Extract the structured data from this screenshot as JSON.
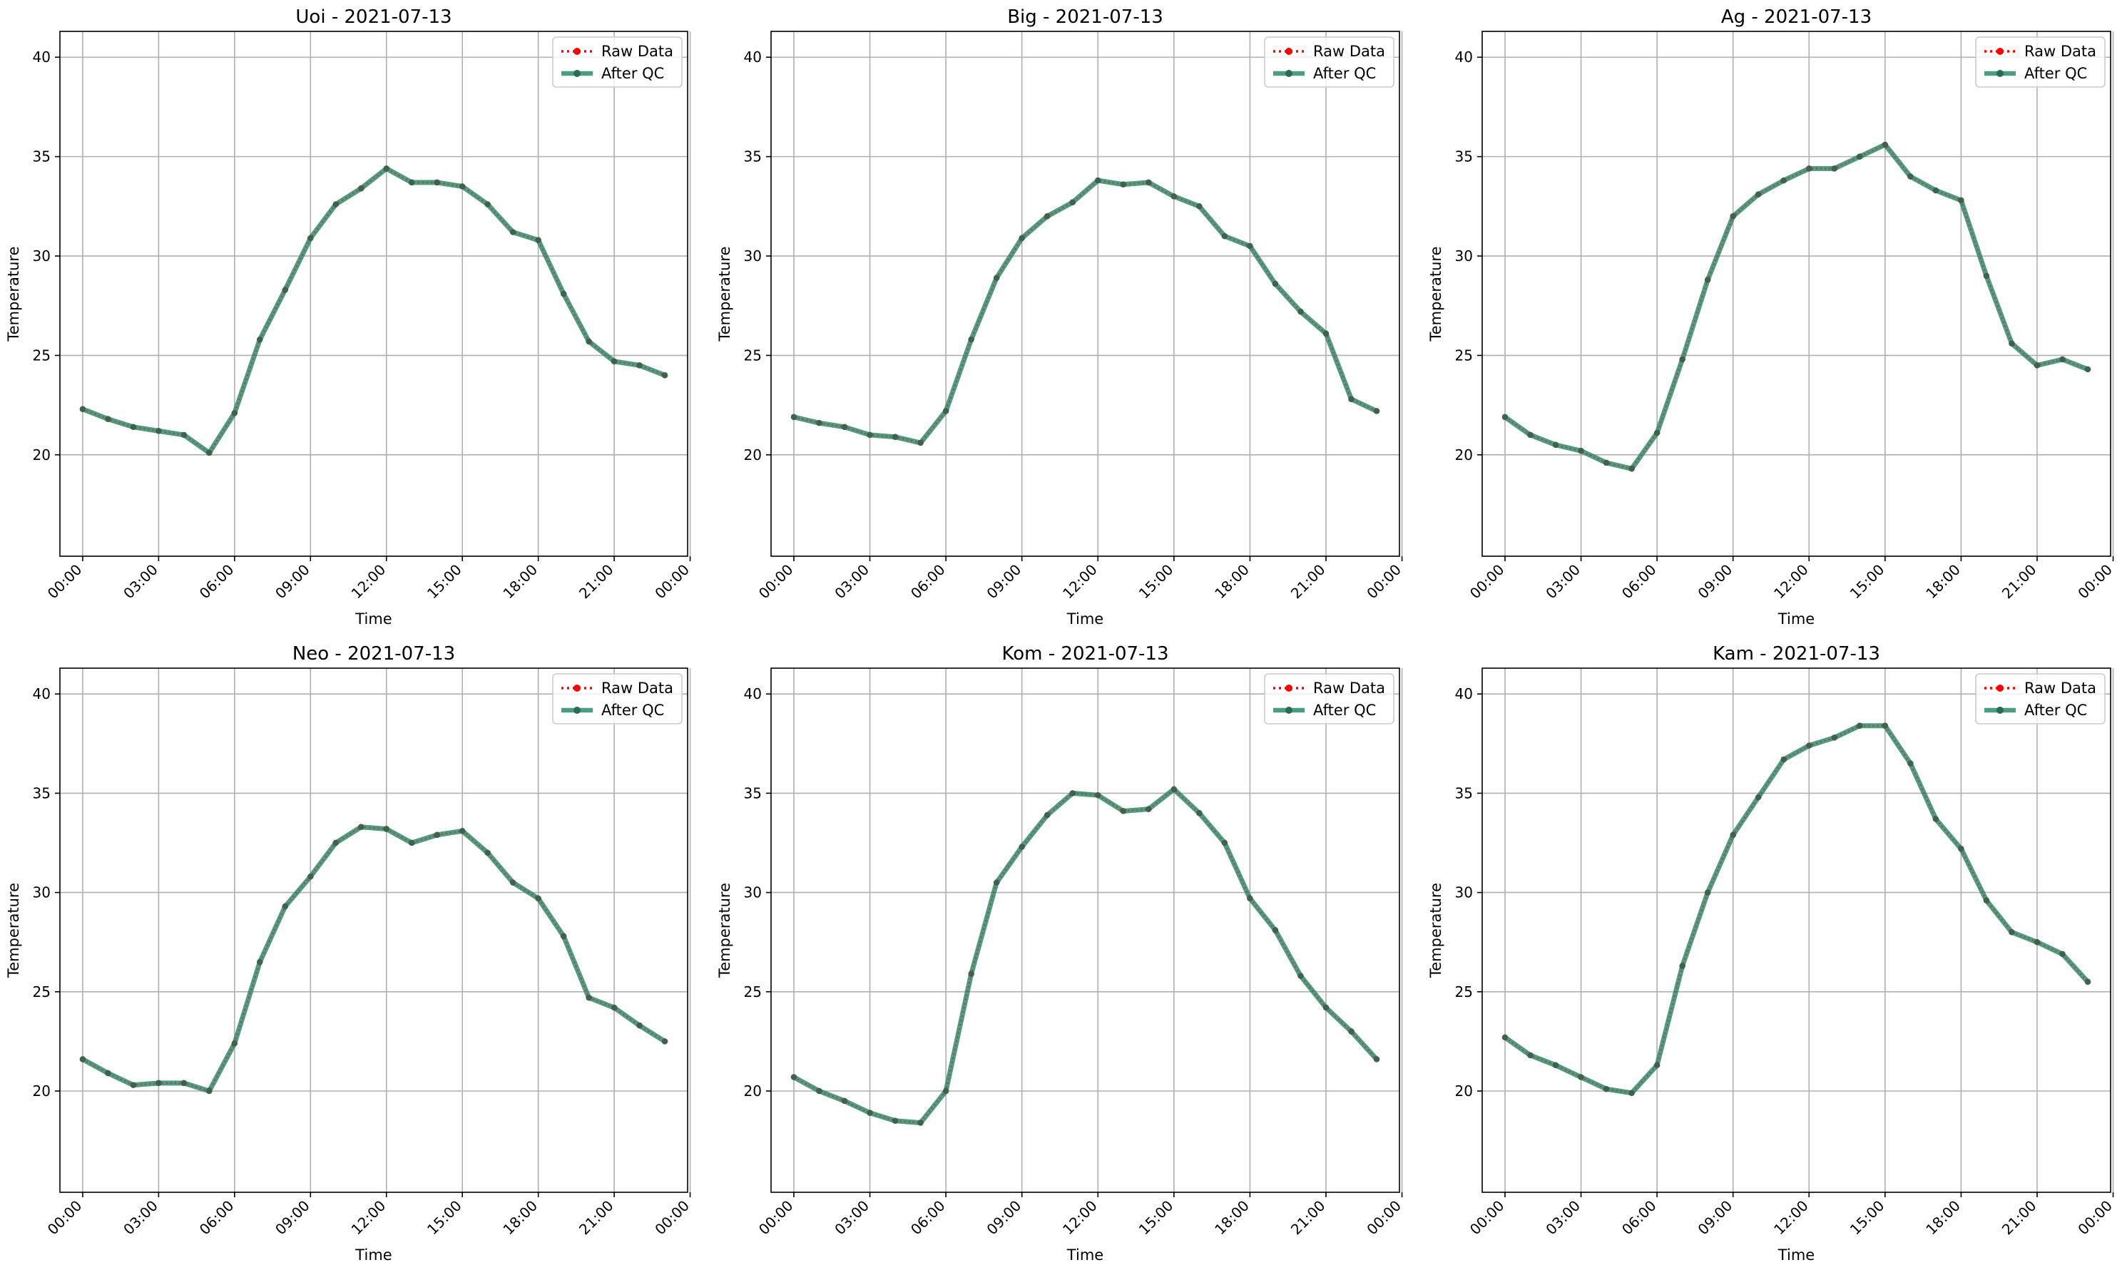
{
  "colors": {
    "raw": "#ff0000",
    "qc": "#2e8b6e",
    "qc_marker": "#2a6b55",
    "grid": "#b0b0b0",
    "axis": "#000000",
    "legend_border": "#cccccc"
  },
  "chart_data": [
    {
      "type": "line",
      "title": "Uoi - 2021-07-13",
      "xlabel": "Time",
      "ylabel": "Temperature",
      "xlim": [
        -0.9,
        23.9
      ],
      "ylim": [
        14.9,
        41.3
      ],
      "xticks": [
        0,
        3,
        6,
        9,
        12,
        15,
        18,
        21,
        24
      ],
      "xtick_labels": [
        "00:00",
        "03:00",
        "06:00",
        "09:00",
        "12:00",
        "15:00",
        "18:00",
        "21:00",
        "00:00"
      ],
      "yticks": [
        20,
        25,
        30,
        35,
        40
      ],
      "ytick_labels": [
        "20",
        "25",
        "30",
        "35",
        "40"
      ],
      "grid": true,
      "legend_position": "top-right",
      "x": [
        0,
        1,
        2,
        3,
        4,
        5,
        6,
        7,
        8,
        9,
        10,
        11,
        12,
        13,
        14,
        15,
        16,
        17,
        18,
        19,
        20,
        21,
        22,
        23
      ],
      "series": [
        {
          "name": "Raw Data",
          "values": [
            22.3,
            21.8,
            21.4,
            21.2,
            21.0,
            20.1,
            22.1,
            25.8,
            28.3,
            30.9,
            32.6,
            33.4,
            34.4,
            33.7,
            33.7,
            33.5,
            32.6,
            31.2,
            30.8,
            28.1,
            25.7,
            24.7,
            24.5,
            24.0
          ]
        },
        {
          "name": "After QC",
          "values": [
            22.3,
            21.8,
            21.4,
            21.2,
            21.0,
            20.1,
            22.1,
            25.8,
            28.3,
            30.9,
            32.6,
            33.4,
            34.4,
            33.7,
            33.7,
            33.5,
            32.6,
            31.2,
            30.8,
            28.1,
            25.7,
            24.7,
            24.5,
            24.0
          ]
        }
      ]
    },
    {
      "type": "line",
      "title": "Big - 2021-07-13",
      "xlabel": "Time",
      "ylabel": "Temperature",
      "xlim": [
        -0.9,
        23.9
      ],
      "ylim": [
        14.9,
        41.3
      ],
      "xticks": [
        0,
        3,
        6,
        9,
        12,
        15,
        18,
        21,
        24
      ],
      "xtick_labels": [
        "00:00",
        "03:00",
        "06:00",
        "09:00",
        "12:00",
        "15:00",
        "18:00",
        "21:00",
        "00:00"
      ],
      "yticks": [
        20,
        25,
        30,
        35,
        40
      ],
      "ytick_labels": [
        "20",
        "25",
        "30",
        "35",
        "40"
      ],
      "grid": true,
      "legend_position": "top-right",
      "x": [
        0,
        1,
        2,
        3,
        4,
        5,
        6,
        7,
        8,
        9,
        10,
        11,
        12,
        13,
        14,
        15,
        16,
        17,
        18,
        19,
        20,
        21,
        22,
        23
      ],
      "series": [
        {
          "name": "Raw Data",
          "values": [
            21.9,
            21.6,
            21.4,
            21.0,
            20.9,
            20.6,
            22.2,
            25.8,
            28.9,
            30.9,
            32.0,
            32.7,
            33.8,
            33.6,
            33.7,
            33.0,
            32.5,
            31.0,
            30.5,
            28.6,
            27.2,
            26.1,
            22.8,
            22.2
          ]
        },
        {
          "name": "After QC",
          "values": [
            21.9,
            21.6,
            21.4,
            21.0,
            20.9,
            20.6,
            22.2,
            25.8,
            28.9,
            30.9,
            32.0,
            32.7,
            33.8,
            33.6,
            33.7,
            33.0,
            32.5,
            31.0,
            30.5,
            28.6,
            27.2,
            26.1,
            22.8,
            22.2
          ]
        }
      ]
    },
    {
      "type": "line",
      "title": "Ag - 2021-07-13",
      "xlabel": "Time",
      "ylabel": "Temperature",
      "xlim": [
        -0.9,
        23.9
      ],
      "ylim": [
        14.9,
        41.3
      ],
      "xticks": [
        0,
        3,
        6,
        9,
        12,
        15,
        18,
        21,
        24
      ],
      "xtick_labels": [
        "00:00",
        "03:00",
        "06:00",
        "09:00",
        "12:00",
        "15:00",
        "18:00",
        "21:00",
        "00:00"
      ],
      "yticks": [
        20,
        25,
        30,
        35,
        40
      ],
      "ytick_labels": [
        "20",
        "25",
        "30",
        "35",
        "40"
      ],
      "grid": true,
      "legend_position": "top-right",
      "x": [
        0,
        1,
        2,
        3,
        4,
        5,
        6,
        7,
        8,
        9,
        10,
        11,
        12,
        13,
        14,
        15,
        16,
        17,
        18,
        19,
        20,
        21,
        22,
        23
      ],
      "series": [
        {
          "name": "Raw Data",
          "values": [
            21.9,
            21.0,
            20.5,
            20.2,
            19.6,
            19.3,
            21.1,
            24.8,
            28.8,
            32.0,
            33.1,
            33.8,
            34.4,
            34.4,
            35.0,
            35.6,
            34.0,
            33.3,
            32.8,
            29.0,
            25.6,
            24.5,
            24.8,
            24.3
          ]
        },
        {
          "name": "After QC",
          "values": [
            21.9,
            21.0,
            20.5,
            20.2,
            19.6,
            19.3,
            21.1,
            24.8,
            28.8,
            32.0,
            33.1,
            33.8,
            34.4,
            34.4,
            35.0,
            35.6,
            34.0,
            33.3,
            32.8,
            29.0,
            25.6,
            24.5,
            24.8,
            24.3
          ]
        }
      ]
    },
    {
      "type": "line",
      "title": "Neo - 2021-07-13",
      "xlabel": "Time",
      "ylabel": "Temperature",
      "xlim": [
        -0.9,
        23.9
      ],
      "ylim": [
        14.9,
        41.3
      ],
      "xticks": [
        0,
        3,
        6,
        9,
        12,
        15,
        18,
        21,
        24
      ],
      "xtick_labels": [
        "00:00",
        "03:00",
        "06:00",
        "09:00",
        "12:00",
        "15:00",
        "18:00",
        "21:00",
        "00:00"
      ],
      "yticks": [
        20,
        25,
        30,
        35,
        40
      ],
      "ytick_labels": [
        "20",
        "25",
        "30",
        "35",
        "40"
      ],
      "grid": true,
      "legend_position": "top-right",
      "x": [
        0,
        1,
        2,
        3,
        4,
        5,
        6,
        7,
        8,
        9,
        10,
        11,
        12,
        13,
        14,
        15,
        16,
        17,
        18,
        19,
        20,
        21,
        22,
        23
      ],
      "series": [
        {
          "name": "Raw Data",
          "values": [
            21.6,
            20.9,
            20.3,
            20.4,
            20.4,
            20.0,
            22.4,
            26.5,
            29.3,
            30.8,
            32.5,
            33.3,
            33.2,
            32.5,
            32.9,
            33.1,
            32.0,
            30.5,
            29.7,
            27.8,
            24.7,
            24.2,
            23.3,
            22.5
          ]
        },
        {
          "name": "After QC",
          "values": [
            21.6,
            20.9,
            20.3,
            20.4,
            20.4,
            20.0,
            22.4,
            26.5,
            29.3,
            30.8,
            32.5,
            33.3,
            33.2,
            32.5,
            32.9,
            33.1,
            32.0,
            30.5,
            29.7,
            27.8,
            24.7,
            24.2,
            23.3,
            22.5
          ]
        }
      ]
    },
    {
      "type": "line",
      "title": "Kom - 2021-07-13",
      "xlabel": "Time",
      "ylabel": "Temperature",
      "xlim": [
        -0.9,
        23.9
      ],
      "ylim": [
        14.9,
        41.3
      ],
      "xticks": [
        0,
        3,
        6,
        9,
        12,
        15,
        18,
        21,
        24
      ],
      "xtick_labels": [
        "00:00",
        "03:00",
        "06:00",
        "09:00",
        "12:00",
        "15:00",
        "18:00",
        "21:00",
        "00:00"
      ],
      "yticks": [
        20,
        25,
        30,
        35,
        40
      ],
      "ytick_labels": [
        "20",
        "25",
        "30",
        "35",
        "40"
      ],
      "grid": true,
      "legend_position": "top-right",
      "x": [
        0,
        1,
        2,
        3,
        4,
        5,
        6,
        7,
        8,
        9,
        10,
        11,
        12,
        13,
        14,
        15,
        16,
        17,
        18,
        19,
        20,
        21,
        22,
        23
      ],
      "series": [
        {
          "name": "Raw Data",
          "values": [
            20.7,
            20.0,
            19.5,
            18.9,
            18.5,
            18.4,
            20.0,
            25.9,
            30.5,
            32.3,
            33.9,
            35.0,
            34.9,
            34.1,
            34.2,
            35.2,
            34.0,
            32.5,
            29.7,
            28.1,
            25.8,
            24.2,
            23.0,
            21.6
          ]
        },
        {
          "name": "After QC",
          "values": [
            20.7,
            20.0,
            19.5,
            18.9,
            18.5,
            18.4,
            20.0,
            25.9,
            30.5,
            32.3,
            33.9,
            35.0,
            34.9,
            34.1,
            34.2,
            35.2,
            34.0,
            32.5,
            29.7,
            28.1,
            25.8,
            24.2,
            23.0,
            21.6
          ]
        }
      ]
    },
    {
      "type": "line",
      "title": "Kam - 2021-07-13",
      "xlabel": "Time",
      "ylabel": "Temperature",
      "xlim": [
        -0.9,
        23.9
      ],
      "ylim": [
        14.9,
        41.3
      ],
      "xticks": [
        0,
        3,
        6,
        9,
        12,
        15,
        18,
        21,
        24
      ],
      "xtick_labels": [
        "00:00",
        "03:00",
        "06:00",
        "09:00",
        "12:00",
        "15:00",
        "18:00",
        "21:00",
        "00:00"
      ],
      "yticks": [
        20,
        25,
        30,
        35,
        40
      ],
      "ytick_labels": [
        "20",
        "25",
        "30",
        "35",
        "40"
      ],
      "grid": true,
      "legend_position": "top-right",
      "x": [
        0,
        1,
        2,
        3,
        4,
        5,
        6,
        7,
        8,
        9,
        10,
        11,
        12,
        13,
        14,
        15,
        16,
        17,
        18,
        19,
        20,
        21,
        22,
        23
      ],
      "series": [
        {
          "name": "Raw Data",
          "values": [
            22.7,
            21.8,
            21.3,
            20.7,
            20.1,
            19.9,
            21.3,
            26.3,
            30.0,
            32.9,
            34.8,
            36.7,
            37.4,
            37.8,
            38.4,
            38.4,
            36.5,
            33.7,
            32.2,
            29.6,
            28.0,
            27.5,
            26.9,
            25.5
          ]
        },
        {
          "name": "After QC",
          "values": [
            22.7,
            21.8,
            21.3,
            20.7,
            20.1,
            19.9,
            21.3,
            26.3,
            30.0,
            32.9,
            34.8,
            36.7,
            37.4,
            37.8,
            38.4,
            38.4,
            36.5,
            33.7,
            32.2,
            29.6,
            28.0,
            27.5,
            26.9,
            25.5
          ]
        }
      ]
    }
  ]
}
